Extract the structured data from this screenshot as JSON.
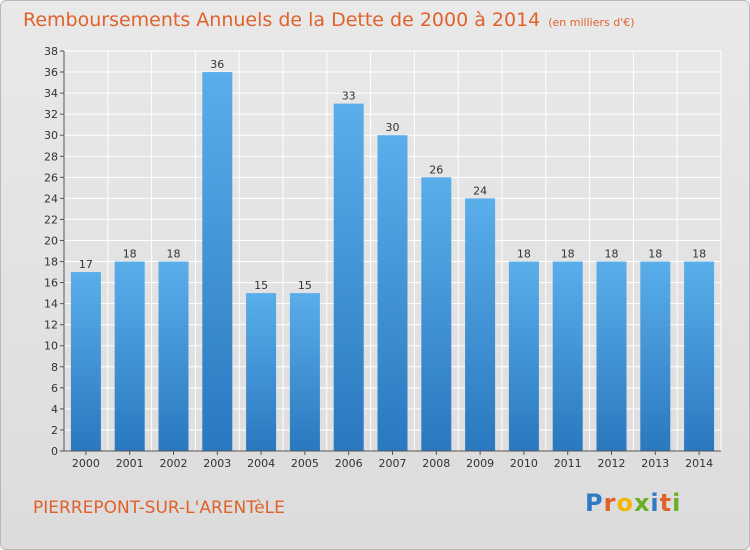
{
  "header": {
    "title": "Remboursements Annuels de la Dette de 2000 à 2014",
    "subtitle": "(en milliers d'€)"
  },
  "footer": {
    "commune": "PIERREPONT-SUR-L'ARENTèLE",
    "logo_text": "Proxiti"
  },
  "colors": {
    "title": "#e0622a",
    "bar_top": "#5aaeea",
    "bar_bottom": "#2a78bf",
    "grid": "#ffffff"
  },
  "chart_data": {
    "type": "bar",
    "title": "Remboursements Annuels de la Dette de 2000 à 2014",
    "subtitle": "(en milliers d'€)",
    "categories": [
      "2000",
      "2001",
      "2002",
      "2003",
      "2004",
      "2005",
      "2006",
      "2007",
      "2008",
      "2009",
      "2010",
      "2011",
      "2012",
      "2013",
      "2014"
    ],
    "values": [
      17,
      18,
      18,
      36,
      15,
      15,
      33,
      30,
      26,
      24,
      18,
      18,
      18,
      18,
      18
    ],
    "ylim": [
      0,
      38
    ],
    "yticks": [
      0,
      2,
      4,
      6,
      8,
      10,
      12,
      14,
      16,
      18,
      20,
      22,
      24,
      26,
      28,
      30,
      32,
      34,
      36,
      38
    ],
    "grid": true,
    "xlabel": "",
    "ylabel": ""
  }
}
